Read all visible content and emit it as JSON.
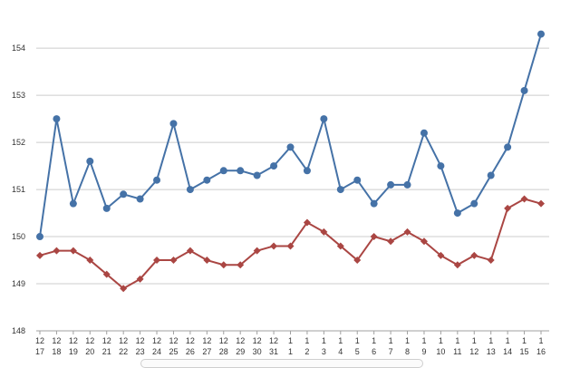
{
  "chart_data": {
    "type": "line",
    "x": [
      {
        "month": "12",
        "day": "17"
      },
      {
        "month": "12",
        "day": "18"
      },
      {
        "month": "12",
        "day": "19"
      },
      {
        "month": "12",
        "day": "20"
      },
      {
        "month": "12",
        "day": "21"
      },
      {
        "month": "12",
        "day": "22"
      },
      {
        "month": "12",
        "day": "23"
      },
      {
        "month": "12",
        "day": "24"
      },
      {
        "month": "12",
        "day": "25"
      },
      {
        "month": "12",
        "day": "26"
      },
      {
        "month": "12",
        "day": "27"
      },
      {
        "month": "12",
        "day": "28"
      },
      {
        "month": "12",
        "day": "29"
      },
      {
        "month": "12",
        "day": "30"
      },
      {
        "month": "12",
        "day": "31"
      },
      {
        "month": "1",
        "day": "1"
      },
      {
        "month": "1",
        "day": "2"
      },
      {
        "month": "1",
        "day": "3"
      },
      {
        "month": "1",
        "day": "4"
      },
      {
        "month": "1",
        "day": "5"
      },
      {
        "month": "1",
        "day": "6"
      },
      {
        "month": "1",
        "day": "7"
      },
      {
        "month": "1",
        "day": "8"
      },
      {
        "month": "1",
        "day": "9"
      },
      {
        "month": "1",
        "day": "10"
      },
      {
        "month": "1",
        "day": "11"
      },
      {
        "month": "1",
        "day": "12"
      },
      {
        "month": "1",
        "day": "13"
      },
      {
        "month": "1",
        "day": "14"
      },
      {
        "month": "1",
        "day": "15"
      },
      {
        "month": "1",
        "day": "16"
      }
    ],
    "series": [
      {
        "color": "#4572a7",
        "marker": "circle",
        "values": [
          150.0,
          152.5,
          150.7,
          151.6,
          150.6,
          150.9,
          150.8,
          151.2,
          152.4,
          151.0,
          151.2,
          151.4,
          151.4,
          151.3,
          151.5,
          151.9,
          151.4,
          152.5,
          151.0,
          151.2,
          150.7,
          151.1,
          151.1,
          152.2,
          151.5,
          150.5,
          150.7,
          151.3,
          151.9,
          153.1,
          154.3
        ]
      },
      {
        "color": "#aa4643",
        "marker": "diamond",
        "values": [
          149.6,
          149.7,
          149.7,
          149.5,
          149.2,
          148.9,
          149.1,
          149.5,
          149.5,
          149.7,
          149.5,
          149.4,
          149.4,
          149.7,
          149.8,
          149.8,
          150.3,
          150.1,
          149.8,
          149.5,
          150.0,
          149.9,
          150.1,
          149.9,
          149.6,
          149.4,
          149.6,
          149.5,
          150.6,
          150.8,
          150.7
        ]
      }
    ],
    "y_ticks": [
      "148",
      "149",
      "150",
      "151",
      "152",
      "153",
      "154"
    ],
    "ylim": [
      148,
      154.6
    ],
    "grid": "horizontal",
    "title": "",
    "xlabel": "",
    "ylabel": ""
  }
}
